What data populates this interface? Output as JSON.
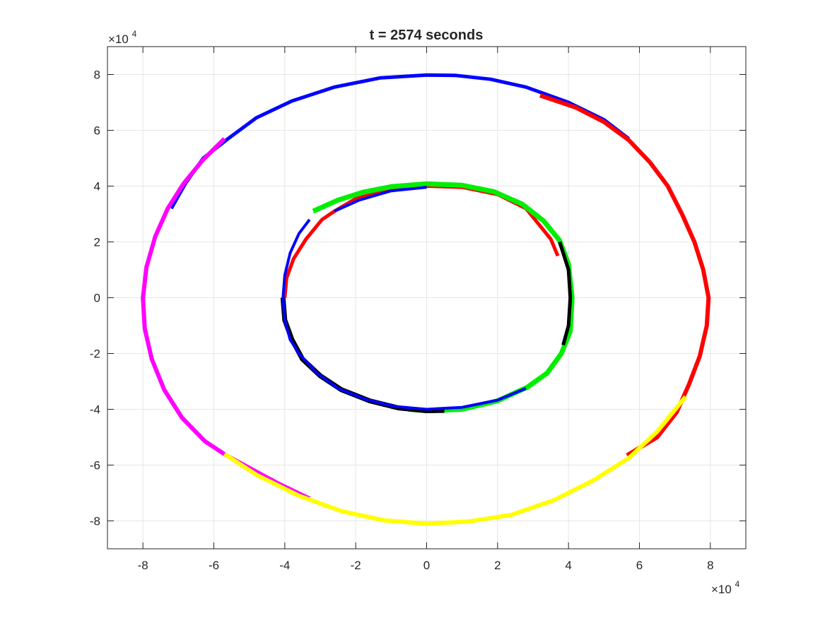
{
  "chart_data": {
    "type": "line",
    "title": "t = 2574 seconds",
    "xlabel": "",
    "ylabel": "",
    "xlim": [
      -90000,
      90000
    ],
    "ylim": [
      -90000,
      90000
    ],
    "grid": true,
    "legend": "none",
    "x_exponent_label": {
      "base": "×10",
      "exp": "4"
    },
    "y_exponent_label": {
      "base": "×10",
      "exp": "4"
    },
    "x_ticks": [
      {
        "value": -80000,
        "label": "-8"
      },
      {
        "value": -60000,
        "label": "-6"
      },
      {
        "value": -40000,
        "label": "-4"
      },
      {
        "value": -20000,
        "label": "-2"
      },
      {
        "value": 0,
        "label": "0"
      },
      {
        "value": 20000,
        "label": "2"
      },
      {
        "value": 40000,
        "label": "4"
      },
      {
        "value": 60000,
        "label": "6"
      },
      {
        "value": 80000,
        "label": "8"
      }
    ],
    "y_ticks": [
      {
        "value": -80000,
        "label": "-8"
      },
      {
        "value": -60000,
        "label": "-6"
      },
      {
        "value": -40000,
        "label": "-4"
      },
      {
        "value": -20000,
        "label": "-2"
      },
      {
        "value": 0,
        "label": "0"
      },
      {
        "value": 20000,
        "label": "2"
      },
      {
        "value": 40000,
        "label": "4"
      },
      {
        "value": 60000,
        "label": "6"
      },
      {
        "value": 80000,
        "label": "8"
      }
    ],
    "series": [
      {
        "color": "#0000ff",
        "width": 5,
        "points": [
          [
            -72000,
            32000
          ],
          [
            -68000,
            41000
          ],
          [
            -63000,
            50000
          ],
          [
            -56000,
            57000
          ],
          [
            -48000,
            64500
          ],
          [
            -38000,
            70500
          ],
          [
            -26000,
            75500
          ],
          [
            -13000,
            78800
          ],
          [
            0,
            79800
          ],
          [
            8000,
            79700
          ],
          [
            18000,
            78300
          ],
          [
            28000,
            75500
          ],
          [
            40000,
            70000
          ],
          [
            50000,
            63800
          ],
          [
            57000,
            57000
          ]
        ]
      },
      {
        "color": "#ff0000",
        "width": 6,
        "points": [
          [
            32000,
            72500
          ],
          [
            42000,
            68200
          ],
          [
            50000,
            63000
          ],
          [
            57000,
            56500
          ],
          [
            63000,
            48500
          ],
          [
            68000,
            40000
          ],
          [
            72000,
            30000
          ],
          [
            75500,
            20000
          ],
          [
            78000,
            10000
          ],
          [
            79500,
            0
          ],
          [
            79000,
            -10000
          ],
          [
            77000,
            -21000
          ],
          [
            74000,
            -31000
          ],
          [
            70500,
            -41000
          ],
          [
            65000,
            -50000
          ],
          [
            56500,
            -56500
          ]
        ]
      },
      {
        "color": "#ff00ff",
        "width": 6,
        "points": [
          [
            -57000,
            57000
          ],
          [
            -63000,
            49500
          ],
          [
            -68500,
            41000
          ],
          [
            -73000,
            32000
          ],
          [
            -76500,
            22000
          ],
          [
            -79000,
            11000
          ],
          [
            -80000,
            0
          ],
          [
            -79500,
            -11000
          ],
          [
            -77500,
            -22000
          ],
          [
            -74000,
            -33000
          ],
          [
            -69000,
            -43000
          ],
          [
            -62500,
            -51500
          ],
          [
            -56500,
            -56500
          ],
          [
            -50000,
            -61000
          ],
          [
            -42000,
            -66500
          ],
          [
            -33000,
            -72000
          ]
        ]
      },
      {
        "color": "#ffff00",
        "width": 6,
        "points": [
          [
            -57000,
            -56000
          ],
          [
            -48000,
            -63500
          ],
          [
            -36000,
            -71000
          ],
          [
            -24000,
            -76500
          ],
          [
            -12000,
            -79800
          ],
          [
            0,
            -81000
          ],
          [
            12000,
            -80200
          ],
          [
            24000,
            -77800
          ],
          [
            36000,
            -72500
          ],
          [
            47000,
            -65500
          ],
          [
            57000,
            -57500
          ],
          [
            65000,
            -48000
          ],
          [
            73000,
            -35500
          ]
        ]
      },
      {
        "color": "#ff0000",
        "width": 5,
        "points": [
          [
            -40000,
            0
          ],
          [
            -39500,
            7000
          ],
          [
            -37500,
            14000
          ],
          [
            -34000,
            21000
          ],
          [
            -29500,
            28000
          ],
          [
            -26000,
            31000
          ],
          [
            -20000,
            35500
          ],
          [
            -10000,
            39000
          ],
          [
            0,
            40000
          ],
          [
            10000,
            39600
          ],
          [
            20000,
            37000
          ],
          [
            28000,
            32000
          ],
          [
            35000,
            21000
          ],
          [
            37000,
            15000
          ]
        ]
      },
      {
        "color": "#00ee00",
        "width": 7,
        "points": [
          [
            -32000,
            31000
          ],
          [
            -25000,
            35000
          ],
          [
            -18000,
            37800
          ],
          [
            -10000,
            39800
          ],
          [
            0,
            40800
          ],
          [
            10000,
            40300
          ],
          [
            19000,
            38000
          ],
          [
            27000,
            33500
          ],
          [
            33000,
            27500
          ],
          [
            37500,
            20500
          ],
          [
            40000,
            12000
          ],
          [
            41000,
            0
          ],
          [
            40500,
            -12000
          ],
          [
            38000,
            -20000
          ],
          [
            34000,
            -27000
          ],
          [
            28500,
            -32000
          ],
          [
            20000,
            -37000
          ],
          [
            10000,
            -40000
          ],
          [
            0,
            -40500
          ],
          [
            -5000,
            -40000
          ]
        ]
      },
      {
        "color": "#000000",
        "width": 7,
        "points": [
          [
            -40500,
            0
          ],
          [
            -40000,
            -8000
          ],
          [
            -38000,
            -15000
          ],
          [
            -35000,
            -22000
          ],
          [
            -30000,
            -28000
          ],
          [
            -24000,
            -33000
          ],
          [
            -16000,
            -37000
          ],
          [
            -8000,
            -39500
          ],
          [
            0,
            -40500
          ],
          [
            5000,
            -40400
          ]
        ]
      },
      {
        "color": "#000000",
        "width": 5,
        "points": [
          [
            37500,
            20000
          ],
          [
            40000,
            10000
          ],
          [
            40500,
            0
          ],
          [
            40000,
            -10000
          ],
          [
            38500,
            -17000
          ]
        ]
      },
      {
        "color": "#0000ff",
        "width": 4,
        "points": [
          [
            -33000,
            28000
          ],
          [
            -36000,
            23000
          ],
          [
            -38500,
            16000
          ],
          [
            -40000,
            8000
          ],
          [
            -40500,
            0
          ],
          [
            -40000,
            -8000
          ],
          [
            -38500,
            -15000
          ],
          [
            -36000,
            -20000
          ],
          [
            -31000,
            -27000
          ],
          [
            -25000,
            -32500
          ],
          [
            -17000,
            -36500
          ],
          [
            -9000,
            -39000
          ],
          [
            0,
            -40000
          ],
          [
            10000,
            -39300
          ],
          [
            20000,
            -36700
          ],
          [
            28000,
            -32500
          ]
        ]
      },
      {
        "color": "#0000ff",
        "width": 4,
        "points": [
          [
            -26000,
            31000
          ],
          [
            -19000,
            35000
          ],
          [
            -10000,
            38300
          ],
          [
            0,
            39600
          ]
        ]
      }
    ]
  }
}
